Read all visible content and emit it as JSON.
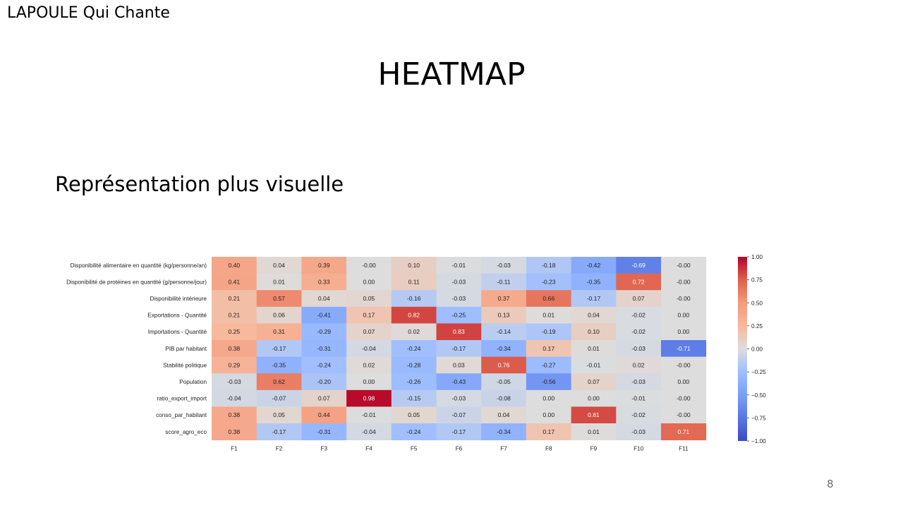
{
  "header": {
    "brand": "LAPOULE Qui Chante"
  },
  "slide": {
    "title": "HEATMAP",
    "subtitle": "Représentation plus visuelle",
    "page_number": "8"
  },
  "chart_data": {
    "type": "heatmap",
    "x": [
      "F1",
      "F2",
      "F3",
      "F4",
      "F5",
      "F6",
      "F7",
      "F8",
      "F9",
      "F10",
      "F11"
    ],
    "y": [
      "Disponibilité alimentaire en quantité (kg/personne/an)",
      "Disponibilité de protéines en quantité (g/personne/jour)",
      "Disponibilité intérieure",
      "Exportations - Quantité",
      "Importations - Quantité",
      "PIB par habitant",
      "Stabilité politique",
      "Population",
      "ratio_export_import",
      "conso_par_habitant",
      "score_agro_eco"
    ],
    "values": [
      [
        0.4,
        0.04,
        0.39,
        -0.0,
        0.1,
        -0.01,
        -0.03,
        -0.18,
        -0.42,
        -0.69,
        -0.0
      ],
      [
        0.41,
        0.01,
        0.33,
        0.0,
        0.11,
        -0.03,
        -0.11,
        -0.23,
        -0.35,
        0.72,
        -0.0
      ],
      [
        0.21,
        0.57,
        0.04,
        0.05,
        -0.16,
        -0.03,
        0.37,
        0.66,
        -0.17,
        0.07,
        -0.0
      ],
      [
        0.21,
        0.06,
        -0.41,
        0.17,
        0.82,
        -0.25,
        0.13,
        0.01,
        0.04,
        -0.02,
        0.0
      ],
      [
        0.25,
        0.31,
        -0.29,
        0.07,
        0.02,
        0.83,
        -0.14,
        -0.19,
        0.1,
        -0.02,
        0.0
      ],
      [
        0.38,
        -0.17,
        -0.31,
        -0.04,
        -0.24,
        -0.17,
        -0.34,
        0.17,
        0.01,
        -0.03,
        -0.71
      ],
      [
        0.29,
        -0.35,
        -0.24,
        0.02,
        -0.28,
        0.03,
        0.76,
        -0.27,
        -0.01,
        0.02,
        -0.0
      ],
      [
        -0.03,
        0.62,
        -0.2,
        0.0,
        -0.26,
        -0.43,
        -0.05,
        -0.56,
        0.07,
        -0.03,
        0.0
      ],
      [
        -0.04,
        -0.07,
        0.07,
        0.98,
        -0.15,
        -0.03,
        -0.08,
        0.0,
        0.0,
        -0.01,
        -0.0
      ],
      [
        0.38,
        0.05,
        0.44,
        -0.01,
        0.05,
        -0.07,
        0.04,
        0.0,
        0.81,
        -0.02,
        -0.0
      ],
      [
        0.38,
        -0.17,
        -0.31,
        -0.04,
        -0.24,
        -0.17,
        -0.34,
        0.17,
        0.01,
        -0.03,
        0.71
      ]
    ],
    "value_labels": [
      [
        "0.40",
        "0.04",
        "0.39",
        "-0.00",
        "0.10",
        "-0.01",
        "-0.03",
        "-0.18",
        "-0.42",
        "-0.69",
        "-0.00"
      ],
      [
        "0.41",
        "0.01",
        "0.33",
        "0.00",
        "0.11",
        "-0.03",
        "-0.11",
        "-0.23",
        "-0.35",
        "0.72",
        "-0.00"
      ],
      [
        "0.21",
        "0.57",
        "0.04",
        "0.05",
        "-0.16",
        "-0.03",
        "0.37",
        "0.66",
        "-0.17",
        "0.07",
        "-0.00"
      ],
      [
        "0.21",
        "0.06",
        "-0.41",
        "0.17",
        "0.82",
        "-0.25",
        "0.13",
        "0.01",
        "0.04",
        "-0.02",
        "0.00"
      ],
      [
        "0.25",
        "0.31",
        "-0.29",
        "0.07",
        "0.02",
        "0.83",
        "-0.14",
        "-0.19",
        "0.10",
        "-0.02",
        "0.00"
      ],
      [
        "0.38",
        "-0.17",
        "-0.31",
        "-0.04",
        "-0.24",
        "-0.17",
        "-0.34",
        "0.17",
        "0.01",
        "-0.03",
        "-0.71"
      ],
      [
        "0.29",
        "-0.35",
        "-0.24",
        "0.02",
        "-0.28",
        "0.03",
        "0.76",
        "-0.27",
        "-0.01",
        "0.02",
        "-0.00"
      ],
      [
        "-0.03",
        "0.62",
        "-0.20",
        "0.00",
        "-0.26",
        "-0.43",
        "-0.05",
        "-0.56",
        "0.07",
        "-0.03",
        "0.00"
      ],
      [
        "-0.04",
        "-0.07",
        "0.07",
        "0.98",
        "-0.15",
        "-0.03",
        "-0.08",
        "0.00",
        "0.00",
        "-0.01",
        "-0.00"
      ],
      [
        "0.38",
        "0.05",
        "0.44",
        "-0.01",
        "0.05",
        "-0.07",
        "0.04",
        "0.00",
        "0.81",
        "-0.02",
        "-0.00"
      ],
      [
        "0.38",
        "-0.17",
        "-0.31",
        "-0.04",
        "-0.24",
        "-0.17",
        "-0.34",
        "0.17",
        "0.01",
        "-0.03",
        "0.71"
      ]
    ],
    "colorscale": "coolwarm",
    "zlim": [
      -1,
      1
    ],
    "colorbar_ticks": [
      "1.00",
      "0.75",
      "0.50",
      "0.25",
      "0.00",
      "−0.25",
      "−0.50",
      "−0.75",
      "−1.00"
    ],
    "colorbar_tick_values": [
      1.0,
      0.75,
      0.5,
      0.25,
      0.0,
      -0.25,
      -0.5,
      -0.75,
      -1.0
    ]
  }
}
